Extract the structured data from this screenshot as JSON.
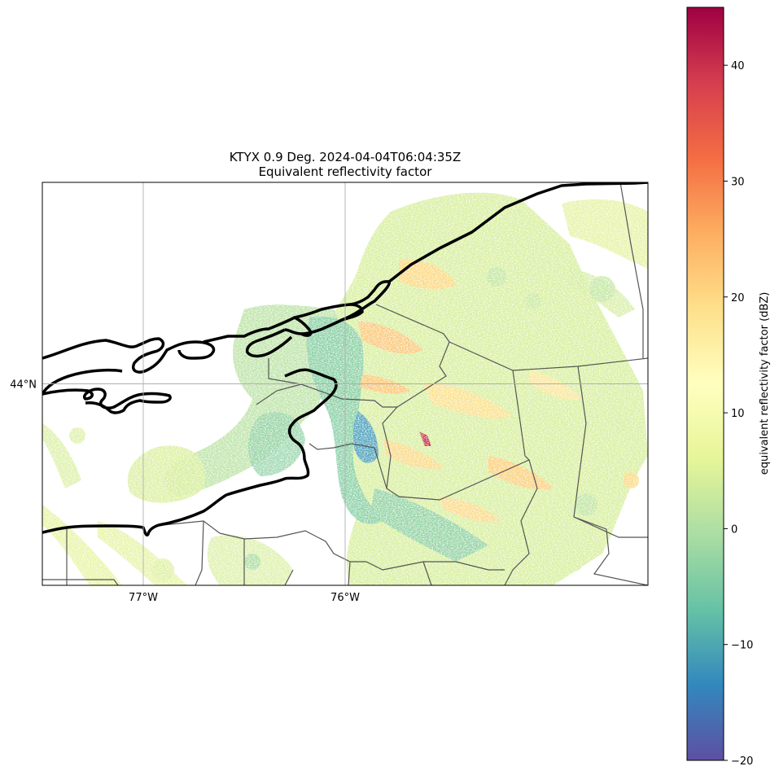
{
  "title": {
    "line1": "KTYX 0.9 Deg. 2024-04-04T06:04:35Z",
    "line2": "Equivalent reflectivity factor"
  },
  "map": {
    "lon_range": [
      -77.5,
      -74.5
    ],
    "lat_range": [
      43.0,
      45.0
    ],
    "lon_ticks": [
      {
        "value": -77,
        "label": "77°W"
      },
      {
        "value": -76,
        "label": "76°W"
      }
    ],
    "lat_ticks": [
      {
        "value": 44,
        "label": "44°N"
      }
    ],
    "grid": true,
    "coastline_color": "#000000",
    "border_color": "#555555"
  },
  "colorbar": {
    "label": "equivalent reflectivity factor (dBZ)",
    "min": -20,
    "max": 45,
    "colormap": "Spectral_r",
    "ticks": [
      {
        "value": 40,
        "label": "40"
      },
      {
        "value": 30,
        "label": "30"
      },
      {
        "value": 20,
        "label": "20"
      },
      {
        "value": 10,
        "label": "10"
      },
      {
        "value": 0,
        "label": "0"
      },
      {
        "value": -10,
        "label": "−10"
      },
      {
        "value": -20,
        "label": "−20"
      }
    ]
  }
}
